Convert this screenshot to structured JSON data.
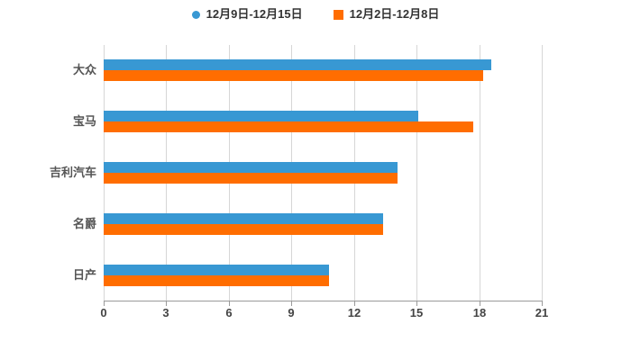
{
  "chart_data": {
    "type": "bar",
    "orientation": "horizontal",
    "title": "",
    "categories": [
      "大众",
      "宝马",
      "吉利汽车",
      "名爵",
      "日产"
    ],
    "series": [
      {
        "name": "12月9日-12月15日",
        "marker": "circle",
        "color": "#3898d3",
        "values": [
          18.6,
          15.1,
          14.1,
          13.4,
          10.8
        ]
      },
      {
        "name": "12月2日-12月8日",
        "marker": "square",
        "color": "#ff6d00",
        "values": [
          18.2,
          17.7,
          14.1,
          13.4,
          10.8
        ]
      }
    ],
    "xlim": [
      0,
      21
    ],
    "xticks": [
      0,
      3,
      6,
      9,
      12,
      15,
      18,
      21
    ],
    "grid": true,
    "legend_position": "top-center",
    "background": "#ffffff"
  },
  "style": {
    "bar_blue": "#3898d3",
    "bar_orange": "#ff6d00",
    "gridline_color": "#d6d6d6",
    "axis_color": "#9a9a9a",
    "tick_label_color": "#444444",
    "category_label_color": "#555555",
    "legend_text_color": "#333333"
  }
}
